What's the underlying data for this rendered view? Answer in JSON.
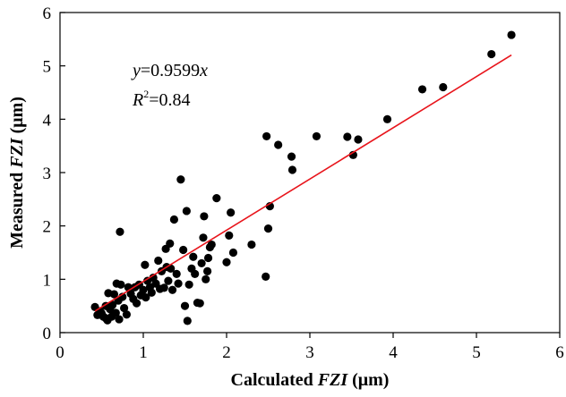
{
  "chart_data": {
    "type": "scatter",
    "title": "",
    "xlabel": {
      "pre": "Calculated ",
      "em": "FZI",
      "post": " (μm)"
    },
    "ylabel": {
      "pre": "Measured ",
      "em": "FZI",
      "post": " (μm)"
    },
    "xlim": [
      0,
      6
    ],
    "ylim": [
      0,
      6
    ],
    "xticks": [
      "0",
      "1",
      "2",
      "3",
      "4",
      "5",
      "6"
    ],
    "yticks": [
      "0",
      "1",
      "2",
      "3",
      "4",
      "5",
      "6"
    ],
    "grid": false,
    "legend": "none",
    "point_color": "#000000",
    "fit_line_color": "#e8141b",
    "fit": {
      "slope": 0.9599,
      "x_range": [
        0.42,
        5.42
      ],
      "equation": {
        "y": "y",
        "rest": "=0.9599",
        "x": "x"
      },
      "r2": {
        "R": "R",
        "sup": "2",
        "rest": "=0.84"
      }
    },
    "points": [
      [
        0.42,
        0.48
      ],
      [
        0.45,
        0.33
      ],
      [
        0.48,
        0.4
      ],
      [
        0.5,
        0.36
      ],
      [
        0.52,
        0.3
      ],
      [
        0.55,
        0.27
      ],
      [
        0.55,
        0.5
      ],
      [
        0.57,
        0.23
      ],
      [
        0.58,
        0.74
      ],
      [
        0.6,
        0.44
      ],
      [
        0.62,
        0.3
      ],
      [
        0.63,
        0.52
      ],
      [
        0.65,
        0.72
      ],
      [
        0.67,
        0.37
      ],
      [
        0.68,
        0.92
      ],
      [
        0.7,
        0.6
      ],
      [
        0.71,
        0.25
      ],
      [
        0.72,
        1.89
      ],
      [
        0.73,
        0.9
      ],
      [
        0.75,
        0.67
      ],
      [
        0.77,
        0.46
      ],
      [
        0.8,
        0.34
      ],
      [
        0.82,
        0.85
      ],
      [
        0.85,
        0.73
      ],
      [
        0.88,
        0.63
      ],
      [
        0.9,
        0.85
      ],
      [
        0.92,
        0.55
      ],
      [
        0.95,
        0.9
      ],
      [
        0.97,
        0.7
      ],
      [
        1.0,
        0.8
      ],
      [
        1.02,
        1.27
      ],
      [
        1.03,
        0.66
      ],
      [
        1.05,
        0.97
      ],
      [
        1.08,
        0.85
      ],
      [
        1.1,
        0.75
      ],
      [
        1.12,
        1.03
      ],
      [
        1.15,
        0.92
      ],
      [
        1.18,
        1.35
      ],
      [
        1.2,
        0.82
      ],
      [
        1.22,
        1.15
      ],
      [
        1.25,
        0.84
      ],
      [
        1.27,
        1.57
      ],
      [
        1.28,
        1.23
      ],
      [
        1.3,
        0.97
      ],
      [
        1.32,
        1.67
      ],
      [
        1.33,
        1.2
      ],
      [
        1.35,
        0.8
      ],
      [
        1.37,
        2.12
      ],
      [
        1.4,
        1.1
      ],
      [
        1.42,
        0.92
      ],
      [
        1.45,
        2.87
      ],
      [
        1.48,
        1.55
      ],
      [
        1.5,
        0.5
      ],
      [
        1.52,
        2.28
      ],
      [
        1.53,
        0.22
      ],
      [
        1.55,
        0.9
      ],
      [
        1.58,
        1.2
      ],
      [
        1.6,
        1.42
      ],
      [
        1.62,
        1.1
      ],
      [
        1.65,
        0.56
      ],
      [
        1.68,
        0.55
      ],
      [
        1.7,
        1.3
      ],
      [
        1.72,
        1.78
      ],
      [
        1.73,
        2.18
      ],
      [
        1.75,
        1.0
      ],
      [
        1.77,
        1.15
      ],
      [
        1.78,
        1.4
      ],
      [
        1.8,
        1.6
      ],
      [
        1.82,
        1.65
      ],
      [
        1.88,
        2.52
      ],
      [
        2.0,
        1.32
      ],
      [
        2.03,
        1.82
      ],
      [
        2.05,
        2.25
      ],
      [
        2.08,
        1.5
      ],
      [
        2.3,
        1.65
      ],
      [
        2.47,
        1.05
      ],
      [
        2.48,
        3.68
      ],
      [
        2.5,
        1.95
      ],
      [
        2.52,
        2.37
      ],
      [
        2.62,
        3.52
      ],
      [
        2.78,
        3.3
      ],
      [
        2.79,
        3.05
      ],
      [
        3.08,
        3.68
      ],
      [
        3.45,
        3.67
      ],
      [
        3.52,
        3.33
      ],
      [
        3.58,
        3.62
      ],
      [
        3.93,
        4.0
      ],
      [
        4.35,
        4.56
      ],
      [
        4.6,
        4.6
      ],
      [
        5.18,
        5.22
      ],
      [
        5.42,
        5.58
      ]
    ]
  }
}
